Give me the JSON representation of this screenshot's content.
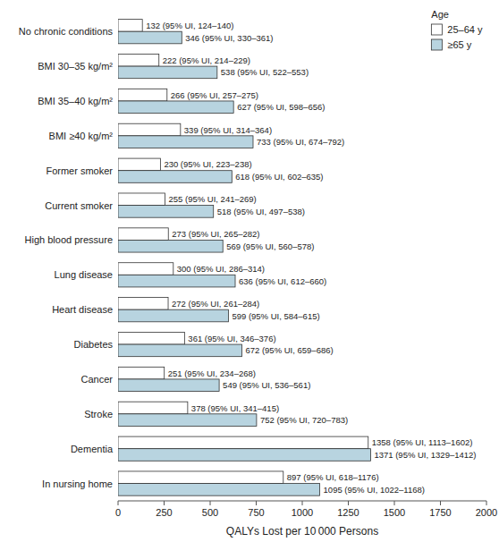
{
  "chart_data": {
    "type": "bar",
    "orientation": "horizontal",
    "categories": [
      "No chronic conditions",
      "BMI 30–35 kg/m²",
      "BMI 35–40 kg/m²",
      "BMI ≥40 kg/m²",
      "Former smoker",
      "Current smoker",
      "High blood pressure",
      "Lung disease",
      "Heart disease",
      "Diabetes",
      "Cancer",
      "Stroke",
      "Dementia",
      "In nursing home"
    ],
    "series": [
      {
        "name": "25–64 y",
        "color": "#ffffff",
        "values": [
          132,
          222,
          266,
          339,
          230,
          255,
          273,
          300,
          272,
          361,
          251,
          378,
          1358,
          897
        ],
        "value_labels": [
          "132 (95% UI, 124–140)",
          "222 (95% UI, 214–229)",
          "266 (95% UI, 257–275)",
          "339 (95% UI, 314–364)",
          "230 (95% UI, 223–238)",
          "255 (95% UI, 241–269)",
          "273 (95% UI, 265–282)",
          "300 (95% UI, 286–314)",
          "272 (95% UI, 261–284)",
          "361 (95% UI, 346–376)",
          "251 (95% UI, 234–268)",
          "378 (95% UI, 341–415)",
          "1358 (95% UI, 1113–1602)",
          "897 (95% UI, 618–1176)"
        ]
      },
      {
        "name": "≥65 y",
        "color": "#b8d4e0",
        "values": [
          346,
          538,
          627,
          733,
          618,
          518,
          569,
          636,
          599,
          672,
          549,
          752,
          1371,
          1095
        ],
        "value_labels": [
          "346 (95% UI, 330–361)",
          "538 (95% UI, 522–553)",
          "627 (95% UI, 598–656)",
          "733 (95% UI, 674–792)",
          "618 (95% UI, 602–635)",
          "518 (95% UI, 497–538)",
          "569 (95% UI, 560–578)",
          "636 (95% UI, 612–660)",
          "599 (95% UI, 584–615)",
          "672 (95% UI, 659–686)",
          "549 (95% UI, 536–561)",
          "752 (95% UI, 720–783)",
          "1371 (95% UI, 1329–1412)",
          "1095 (95% UI, 1022–1168)"
        ]
      }
    ],
    "xlabel": "QALYs Lost per 10 000 Persons",
    "xlim": [
      0,
      2000
    ],
    "xticks": [
      0,
      250,
      500,
      750,
      1000,
      1250,
      1500,
      1750,
      2000
    ],
    "legend": "upper right",
    "legend_title": "Age",
    "data_labels": true,
    "grid": false
  }
}
